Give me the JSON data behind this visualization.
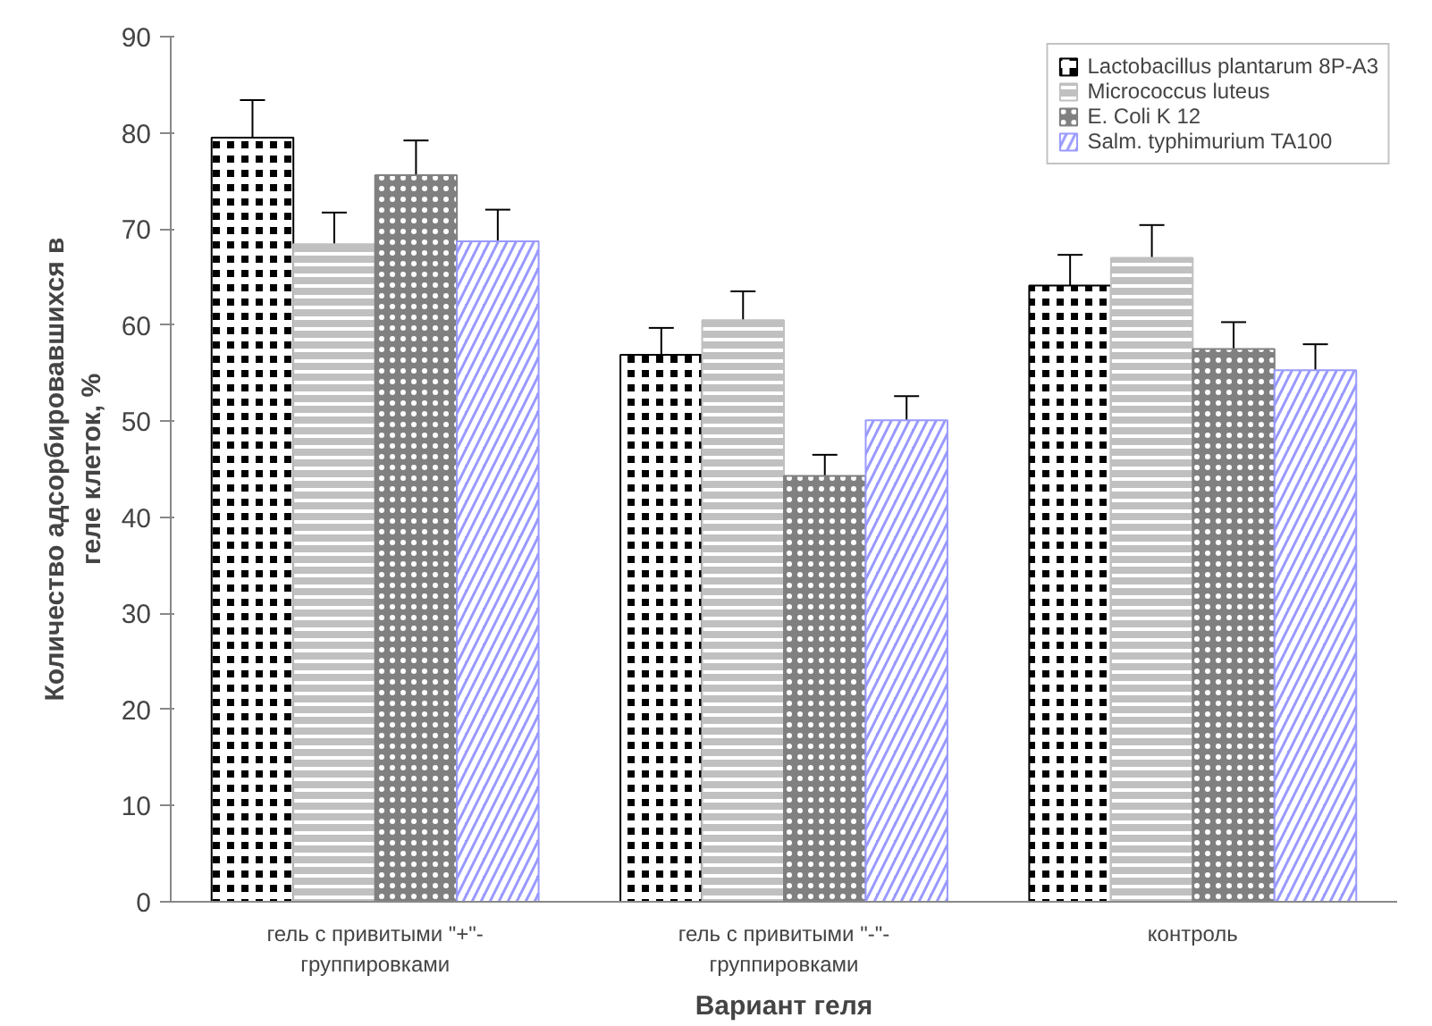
{
  "chart_data": {
    "type": "bar",
    "xlabel": "Вариант геля",
    "ylabel": "Количество адсорбировавшихся в геле клеток, %",
    "categories": [
      "гель с привитыми \"+\"-группировками",
      "гель с привитыми \"-\"-группировками",
      "контроль"
    ],
    "series": [
      {
        "name": "Lactobacillus plantarum 8P-A3",
        "color": "#000000",
        "values": [
          79.5,
          56.9,
          64.1
        ],
        "errors": [
          3.9,
          2.8,
          3.2
        ]
      },
      {
        "name": "Micrococcus luteus",
        "color": "#c0c0c0",
        "values": [
          68.4,
          60.5,
          67.0
        ],
        "errors": [
          3.3,
          3.0,
          3.4
        ]
      },
      {
        "name": "E. Coli K 12",
        "color": "#808080",
        "values": [
          75.6,
          44.3,
          57.5
        ],
        "errors": [
          3.6,
          2.2,
          2.8
        ]
      },
      {
        "name": "Salm. typhimurium TA100",
        "color": "#9999ff",
        "values": [
          68.7,
          50.1,
          55.3
        ],
        "errors": [
          3.3,
          2.5,
          2.7
        ]
      }
    ],
    "ylim": [
      0,
      90
    ],
    "yticks": [
      0,
      10,
      20,
      30,
      40,
      50,
      60,
      70,
      80,
      90
    ],
    "grid": false,
    "legend": "top right"
  }
}
